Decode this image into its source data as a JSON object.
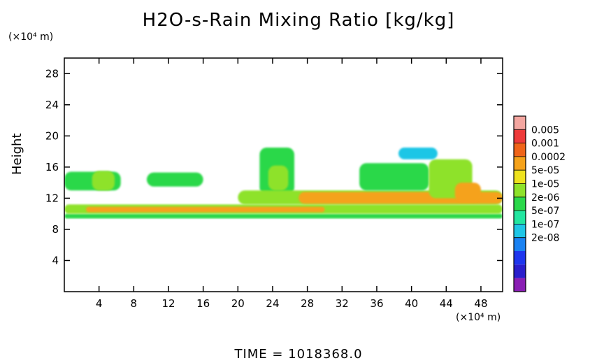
{
  "title": "H2O-s-Rain Mixing Ratio [kg/kg]",
  "footer": "TIME = 1018368.0",
  "chart_data": {
    "type": "heatmap",
    "title": "H2O-s-Rain Mixing Ratio [kg/kg]",
    "ylabel": "Height",
    "x_unit": "(×10⁴ m)",
    "y_unit": "(×10⁴ m)",
    "xlim": [
      0,
      50.5
    ],
    "ylim": [
      0,
      30
    ],
    "x_ticks": [
      "4",
      "8",
      "12",
      "16",
      "20",
      "24",
      "28",
      "32",
      "36",
      "40",
      "44",
      "48"
    ],
    "y_ticks": [
      "4",
      "8",
      "12",
      "16",
      "20",
      "24",
      "28"
    ],
    "colorbar": {
      "labels": [
        "0.005",
        "0.001",
        "0.0002",
        "5e-05",
        "1e-05",
        "2e-06",
        "5e-07",
        "1e-07",
        "2e-08"
      ],
      "colors": [
        "#f4a6a0",
        "#ee3a3a",
        "#f06418",
        "#f5a21a",
        "#eee21e",
        "#8ee22a",
        "#2ad84a",
        "#22e6a0",
        "#1ec6e6",
        "#1a82f2",
        "#1e36ee",
        "#2a1ecc",
        "#8a1eb4"
      ]
    },
    "regions": [
      {
        "level": "2e-06",
        "x": [
          0,
          50.5
        ],
        "y": [
          9.4,
          10.0
        ]
      },
      {
        "level": "1e-05",
        "x": [
          0,
          50.5
        ],
        "y": [
          10.0,
          11.2
        ]
      },
      {
        "level": "0.0002",
        "x": [
          2.5,
          30
        ],
        "y": [
          10.2,
          10.9
        ]
      },
      {
        "level": "2e-06",
        "x": [
          0,
          6.5
        ],
        "y": [
          13.0,
          15.4
        ]
      },
      {
        "level": "1e-05",
        "x": [
          3.2,
          5.8
        ],
        "y": [
          13.0,
          15.5
        ]
      },
      {
        "level": "2e-06",
        "x": [
          9.5,
          16.0
        ],
        "y": [
          13.5,
          15.3
        ]
      },
      {
        "level": "2e-06",
        "x": [
          22.5,
          26.5
        ],
        "y": [
          12.5,
          18.5
        ]
      },
      {
        "level": "1e-05",
        "x": [
          23.5,
          25.8
        ],
        "y": [
          13.0,
          16.2
        ]
      },
      {
        "level": "1e-05",
        "x": [
          20,
          50.5
        ],
        "y": [
          11.2,
          13.0
        ]
      },
      {
        "level": "0.0002",
        "x": [
          27,
          50.5
        ],
        "y": [
          11.3,
          12.8
        ]
      },
      {
        "level": "2e-06",
        "x": [
          34,
          42
        ],
        "y": [
          13.0,
          16.5
        ]
      },
      {
        "level": "1e-05",
        "x": [
          42,
          47
        ],
        "y": [
          12.0,
          17.0
        ]
      },
      {
        "level": "0.0002",
        "x": [
          45,
          48
        ],
        "y": [
          11.5,
          14.0
        ]
      },
      {
        "level": "1e-07",
        "x": [
          38.5,
          43
        ],
        "y": [
          17.0,
          18.5
        ]
      }
    ]
  }
}
